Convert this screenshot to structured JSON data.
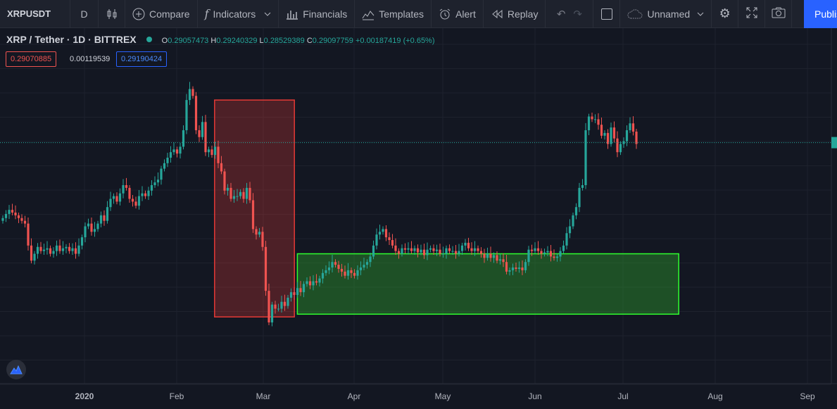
{
  "toolbar": {
    "symbol": "XRPUSDT",
    "interval": "D",
    "compare": "Compare",
    "indicators": "Indicators",
    "financials": "Financials",
    "templates": "Templates",
    "alert": "Alert",
    "replay": "Replay",
    "layout_name": "Unnamed",
    "publish": "Publish"
  },
  "legend": {
    "title": "XRP / Tether · 1D · BITTREX",
    "open_label": "O",
    "open": "0.29057473",
    "high_label": "H",
    "high": "0.29240329",
    "low_label": "L",
    "low": "0.28529389",
    "close_label": "C",
    "close": "0.29097759",
    "change": "+0.00187419 (+0.65%)"
  },
  "price_boxes": {
    "bid": "0.29070885",
    "spread": "0.00119539",
    "ask": "0.29190424"
  },
  "colors": {
    "up": "#26a69a",
    "down": "#ef5350",
    "background": "#131722",
    "red_zone": "#e53935",
    "green_zone": "#2eff2e",
    "accent": "#2962ff"
  },
  "chart_data": {
    "type": "candlestick",
    "x_ticks": [
      "2020",
      "Feb",
      "Mar",
      "Apr",
      "May",
      "Jun",
      "Jul",
      "Aug",
      "Sep"
    ],
    "series": [
      {
        "values": [
          0.236,
          0.239,
          0.242,
          0.24,
          0.238,
          0.236,
          0.234,
          0.232,
          0.216,
          0.205,
          0.21,
          0.215,
          0.212,
          0.213,
          0.214,
          0.21,
          0.212,
          0.216,
          0.212,
          0.214,
          0.215,
          0.212,
          0.214,
          0.21,
          0.216,
          0.222,
          0.23,
          0.232,
          0.226,
          0.228,
          0.232,
          0.238,
          0.234,
          0.244,
          0.25,
          0.252,
          0.248,
          0.254,
          0.26,
          0.258,
          0.25,
          0.248,
          0.245,
          0.252,
          0.254,
          0.252,
          0.256,
          0.26,
          0.262,
          0.264,
          0.272,
          0.276,
          0.28,
          0.284,
          0.286,
          0.283,
          0.288,
          0.3,
          0.322,
          0.33,
          0.325,
          0.3,
          0.295,
          0.306,
          0.284,
          0.286,
          0.282,
          0.288,
          0.276,
          0.27,
          0.256,
          0.258,
          0.25,
          0.252,
          0.252,
          0.255,
          0.25,
          0.258,
          0.249,
          0.228,
          0.224,
          0.226,
          0.215,
          0.183,
          0.16,
          0.173,
          0.17,
          0.17,
          0.175,
          0.172,
          0.178,
          0.182,
          0.18,
          0.185,
          0.182,
          0.188,
          0.19,
          0.187,
          0.19,
          0.189,
          0.192,
          0.196,
          0.198,
          0.2,
          0.204,
          0.202,
          0.199,
          0.197,
          0.194,
          0.198,
          0.196,
          0.194,
          0.198,
          0.2,
          0.202,
          0.204,
          0.208,
          0.216,
          0.224,
          0.226,
          0.228,
          0.222,
          0.22,
          0.216,
          0.212,
          0.21,
          0.214,
          0.213,
          0.214,
          0.212,
          0.214,
          0.211,
          0.213,
          0.209,
          0.213,
          0.214,
          0.212,
          0.213,
          0.21,
          0.21,
          0.214,
          0.212,
          0.212,
          0.21,
          0.212,
          0.216,
          0.218,
          0.214,
          0.212,
          0.214,
          0.212,
          0.21,
          0.207,
          0.21,
          0.207,
          0.209,
          0.205,
          0.206,
          0.204,
          0.197,
          0.198,
          0.2,
          0.199,
          0.2,
          0.198,
          0.204,
          0.213,
          0.212,
          0.214,
          0.212,
          0.21,
          0.211,
          0.212,
          0.208,
          0.207,
          0.208,
          0.212,
          0.216,
          0.225,
          0.23,
          0.238,
          0.244,
          0.258,
          0.26,
          0.3,
          0.31,
          0.308,
          0.308,
          0.304,
          0.296,
          0.298,
          0.29,
          0.302,
          0.294,
          0.284,
          0.29,
          0.292,
          0.3,
          0.305,
          0.299,
          0.29
        ]
      }
    ],
    "annotations": [
      {
        "type": "rectangle",
        "label": "",
        "from": "2020-02-14",
        "to": "2020-03-12",
        "y_range": [
          0.164,
          0.322
        ]
      },
      {
        "type": "rectangle",
        "label": "",
        "from": "2020-03-13",
        "to": "2020-07-20",
        "y_range": [
          0.166,
          0.21
        ]
      }
    ],
    "last_price": "0.29097759"
  }
}
